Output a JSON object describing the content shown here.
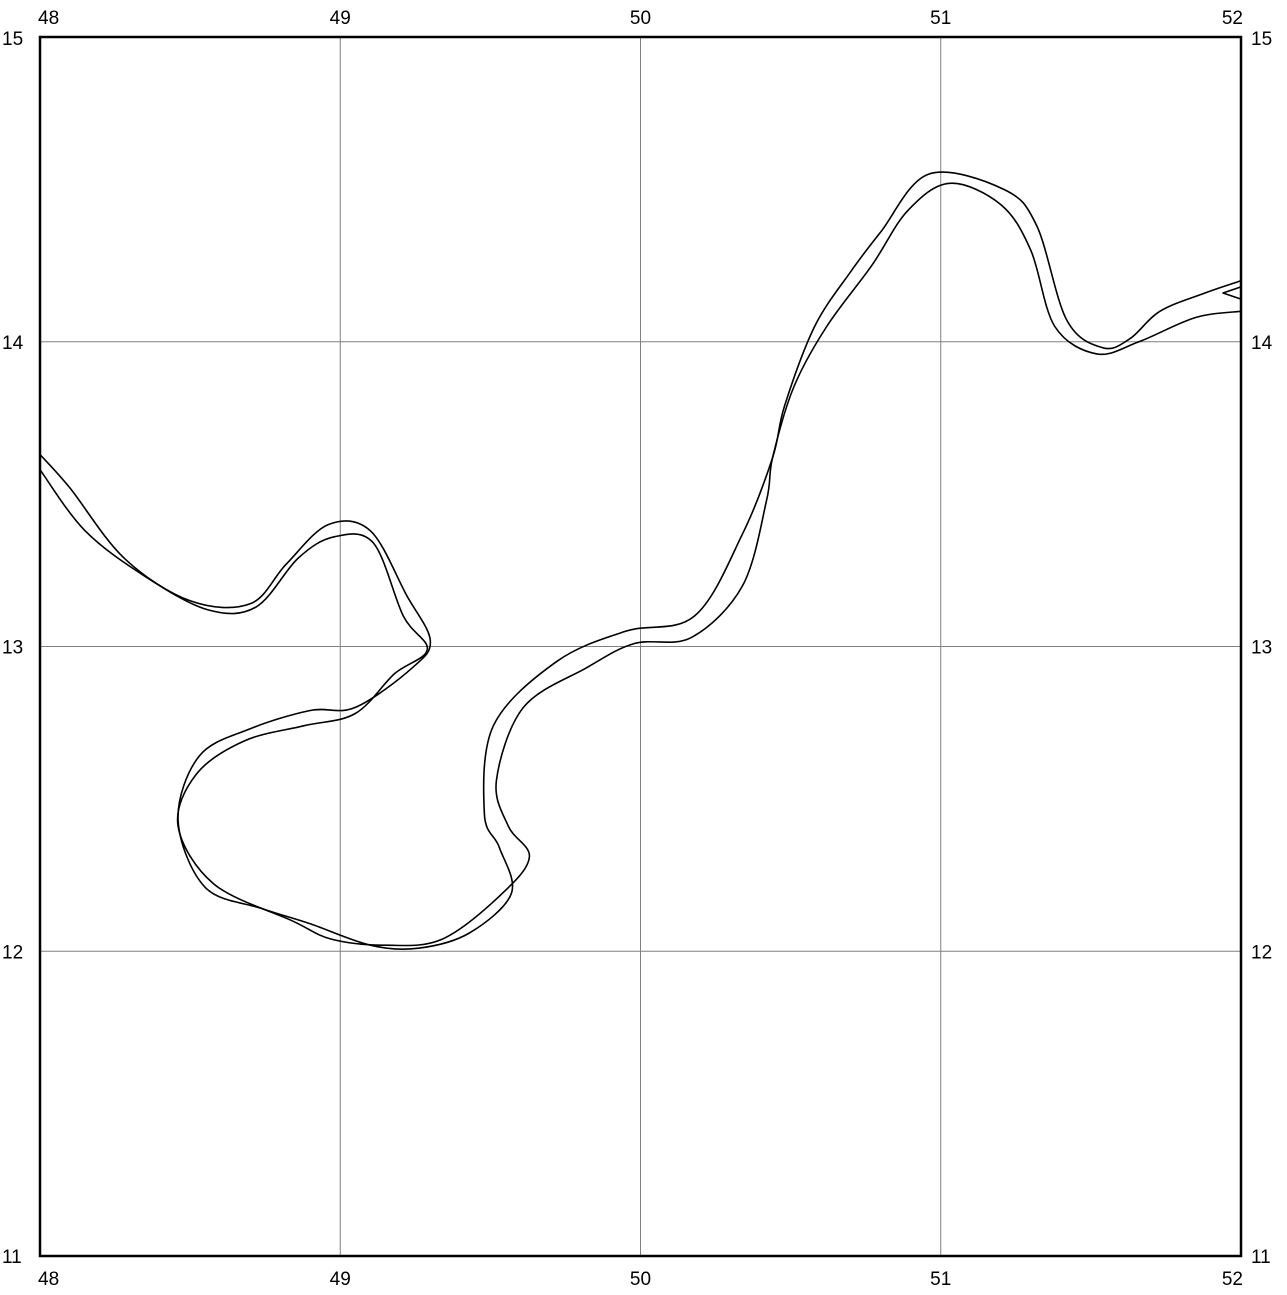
{
  "map": {
    "x_axis": {
      "min": 48,
      "max": 52,
      "ticks": [
        "48",
        "49",
        "50",
        "51",
        "52"
      ]
    },
    "y_axis": {
      "min": 11,
      "max": 15,
      "ticks": [
        "11",
        "12",
        "13",
        "14",
        "15"
      ]
    },
    "grid": true,
    "colors": {
      "frame": "#000000",
      "grid": "#808080",
      "river_bank": "#000000",
      "background": "#ffffff"
    },
    "river": {
      "north_bank": [
        [
          48.0,
          13.63
        ],
        [
          48.1,
          13.52
        ],
        [
          48.28,
          13.29
        ],
        [
          48.5,
          13.15
        ],
        [
          48.7,
          13.14
        ],
        [
          48.82,
          13.27
        ],
        [
          48.96,
          13.4
        ],
        [
          49.1,
          13.38
        ],
        [
          49.22,
          13.17
        ],
        [
          49.3,
          13.02
        ],
        [
          49.24,
          12.93
        ],
        [
          49.05,
          12.8
        ],
        [
          48.9,
          12.79
        ],
        [
          48.7,
          12.73
        ],
        [
          48.53,
          12.64
        ],
        [
          48.46,
          12.43
        ],
        [
          48.55,
          12.21
        ],
        [
          48.74,
          12.14
        ],
        [
          48.9,
          12.09
        ],
        [
          49.1,
          12.02
        ],
        [
          49.26,
          12.01
        ],
        [
          49.43,
          12.06
        ],
        [
          49.57,
          12.19
        ],
        [
          49.53,
          12.34
        ],
        [
          49.48,
          12.45
        ],
        [
          49.51,
          12.74
        ],
        [
          49.72,
          12.95
        ],
        [
          49.95,
          13.05
        ],
        [
          50.18,
          13.1
        ],
        [
          50.34,
          13.37
        ],
        [
          50.44,
          13.62
        ],
        [
          50.48,
          13.79
        ],
        [
          50.58,
          14.05
        ],
        [
          50.7,
          14.23
        ],
        [
          50.8,
          14.36
        ],
        [
          50.96,
          14.55
        ],
        [
          51.21,
          14.5
        ],
        [
          51.32,
          14.38
        ],
        [
          51.42,
          14.07
        ],
        [
          51.54,
          13.98
        ],
        [
          51.63,
          14.01
        ],
        [
          51.73,
          14.1
        ],
        [
          51.88,
          14.16
        ],
        [
          52.0,
          14.2
        ]
      ],
      "south_bank": [
        [
          48.0,
          13.58
        ],
        [
          48.15,
          13.38
        ],
        [
          48.35,
          13.23
        ],
        [
          48.56,
          13.12
        ],
        [
          48.72,
          13.13
        ],
        [
          48.86,
          13.29
        ],
        [
          48.98,
          13.36
        ],
        [
          49.11,
          13.34
        ],
        [
          49.21,
          13.1
        ],
        [
          49.29,
          12.99
        ],
        [
          49.18,
          12.91
        ],
        [
          49.05,
          12.78
        ],
        [
          48.88,
          12.74
        ],
        [
          48.68,
          12.69
        ],
        [
          48.52,
          12.58
        ],
        [
          48.46,
          12.41
        ],
        [
          48.58,
          12.22
        ],
        [
          48.84,
          12.1
        ],
        [
          48.97,
          12.04
        ],
        [
          49.15,
          12.02
        ],
        [
          49.34,
          12.04
        ],
        [
          49.54,
          12.19
        ],
        [
          49.63,
          12.31
        ],
        [
          49.56,
          12.41
        ],
        [
          49.52,
          12.56
        ],
        [
          49.61,
          12.8
        ],
        [
          49.82,
          12.93
        ],
        [
          49.98,
          13.01
        ],
        [
          50.17,
          13.03
        ],
        [
          50.34,
          13.2
        ],
        [
          50.42,
          13.48
        ],
        [
          50.44,
          13.62
        ],
        [
          50.51,
          13.85
        ],
        [
          50.62,
          14.05
        ],
        [
          50.77,
          14.25
        ],
        [
          50.89,
          14.43
        ],
        [
          51.03,
          14.52
        ],
        [
          51.2,
          14.45
        ],
        [
          51.3,
          14.3
        ],
        [
          51.38,
          14.05
        ],
        [
          51.52,
          13.96
        ],
        [
          51.66,
          14.0
        ],
        [
          51.85,
          14.08
        ],
        [
          52.0,
          14.1
        ]
      ],
      "island": [
        [
          52.0,
          14.18
        ],
        [
          51.94,
          14.16
        ],
        [
          52.0,
          14.14
        ]
      ]
    }
  }
}
